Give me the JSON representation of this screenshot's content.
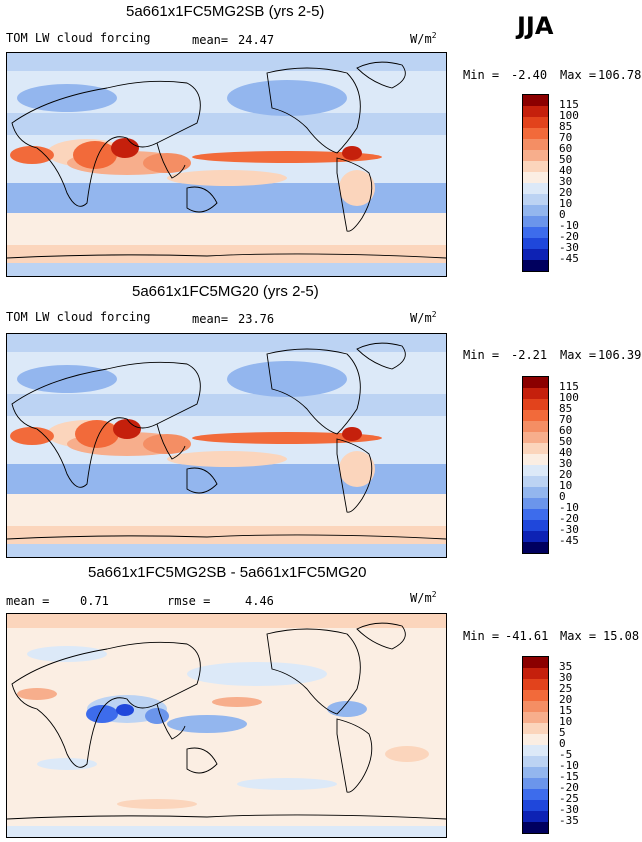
{
  "season": "JJA",
  "panels": [
    {
      "title": "5a661x1FC5MG2SB (yrs 2-5)",
      "field_label": "TOM LW cloud forcing",
      "stat1_label": "mean=",
      "stat1_value": "24.47",
      "stat2_label": "",
      "stat2_value": "",
      "units": "W/m",
      "units_exp": "2",
      "min_label": "Min =",
      "min_value": "-2.40",
      "max_label": "Max =",
      "max_value": "106.78",
      "levels": [
        "115",
        "100",
        "85",
        "70",
        "60",
        "50",
        "40",
        "30",
        "20",
        "10",
        "0",
        "-10",
        "-20",
        "-30",
        "-45"
      ],
      "colors": [
        "#8b0000",
        "#c5200c",
        "#e2431c",
        "#f26a3a",
        "#f48e64",
        "#f7ae8c",
        "#fbd5bc",
        "#fbeee3",
        "#dce9f8",
        "#bcd3f3",
        "#93b6ee",
        "#6b95eb",
        "#3d6cec",
        "#1f47db",
        "#0d22b4",
        "#00005e"
      ]
    },
    {
      "title": "5a661x1FC5MG20 (yrs 2-5)",
      "field_label": "TOM LW cloud forcing",
      "stat1_label": "mean=",
      "stat1_value": "23.76",
      "stat2_label": "",
      "stat2_value": "",
      "units": "W/m",
      "units_exp": "2",
      "min_label": "Min =",
      "min_value": "-2.21",
      "max_label": "Max =",
      "max_value": "106.39",
      "levels": [
        "115",
        "100",
        "85",
        "70",
        "60",
        "50",
        "40",
        "30",
        "20",
        "10",
        "0",
        "-10",
        "-20",
        "-30",
        "-45"
      ],
      "colors": [
        "#8b0000",
        "#c5200c",
        "#e2431c",
        "#f26a3a",
        "#f48e64",
        "#f7ae8c",
        "#fbd5bc",
        "#fbeee3",
        "#dce9f8",
        "#bcd3f3",
        "#93b6ee",
        "#6b95eb",
        "#3d6cec",
        "#1f47db",
        "#0d22b4",
        "#00005e"
      ]
    },
    {
      "title": "5a661x1FC5MG2SB - 5a661x1FC5MG20",
      "field_label": "",
      "stat1_label": "mean =",
      "stat1_value": "0.71",
      "stat2_label": "rmse =",
      "stat2_value": "4.46",
      "units": "W/m",
      "units_exp": "2",
      "min_label": "Min =",
      "min_value": "-41.61",
      "max_label": "Max =",
      "max_value": "15.08",
      "levels": [
        "35",
        "30",
        "25",
        "20",
        "15",
        "10",
        "5",
        "0",
        "-5",
        "-10",
        "-15",
        "-20",
        "-25",
        "-30",
        "-35"
      ],
      "colors": [
        "#8b0000",
        "#c5200c",
        "#e2431c",
        "#f26a3a",
        "#f48e64",
        "#f7ae8c",
        "#fbd5bc",
        "#fbeee3",
        "#dce9f8",
        "#bcd3f3",
        "#93b6ee",
        "#6b95eb",
        "#3d6cec",
        "#1f47db",
        "#0d22b4",
        "#00005e"
      ]
    }
  ]
}
